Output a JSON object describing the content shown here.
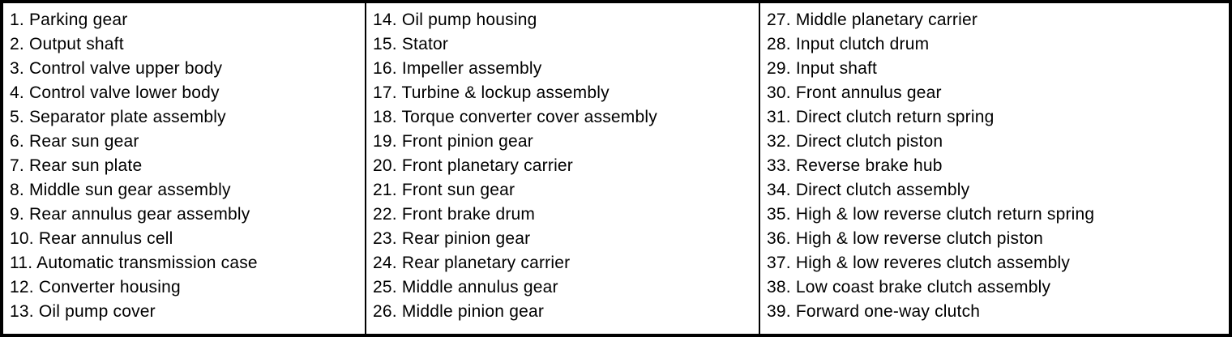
{
  "colors": {
    "border": "#000000",
    "text": "#000000",
    "background": "#ffffff"
  },
  "legend": {
    "columns": [
      {
        "items": [
          "1. Parking gear",
          "2. Output shaft",
          "3. Control valve upper body",
          "4. Control valve lower body",
          "5. Separator plate assembly",
          "6. Rear sun gear",
          "7. Rear sun plate",
          "8. Middle sun gear assembly",
          "9. Rear annulus gear assembly",
          "10. Rear annulus cell",
          "11. Automatic transmission case",
          "12. Converter housing",
          "13. Oil pump cover"
        ]
      },
      {
        "items": [
          "14. Oil pump housing",
          "15. Stator",
          "16. Impeller assembly",
          "17. Turbine & lockup assembly",
          "18. Torque converter cover assembly",
          "19. Front pinion gear",
          "20. Front planetary carrier",
          "21. Front sun gear",
          "22. Front brake drum",
          "23. Rear pinion gear",
          "24. Rear planetary carrier",
          "25. Middle annulus gear",
          "26. Middle pinion gear"
        ]
      },
      {
        "items": [
          "27. Middle planetary carrier",
          "28. Input clutch drum",
          "29. Input shaft",
          "30. Front annulus gear",
          "31. Direct clutch return spring",
          "32. Direct clutch piston",
          "33. Reverse brake hub",
          "34. Direct clutch assembly",
          "35. High & low reverse clutch return spring",
          "36. High & low reverse clutch piston",
          "37. High & low reveres clutch assembly",
          "38. Low coast brake clutch assembly",
          "39. Forward one-way clutch"
        ]
      }
    ]
  }
}
